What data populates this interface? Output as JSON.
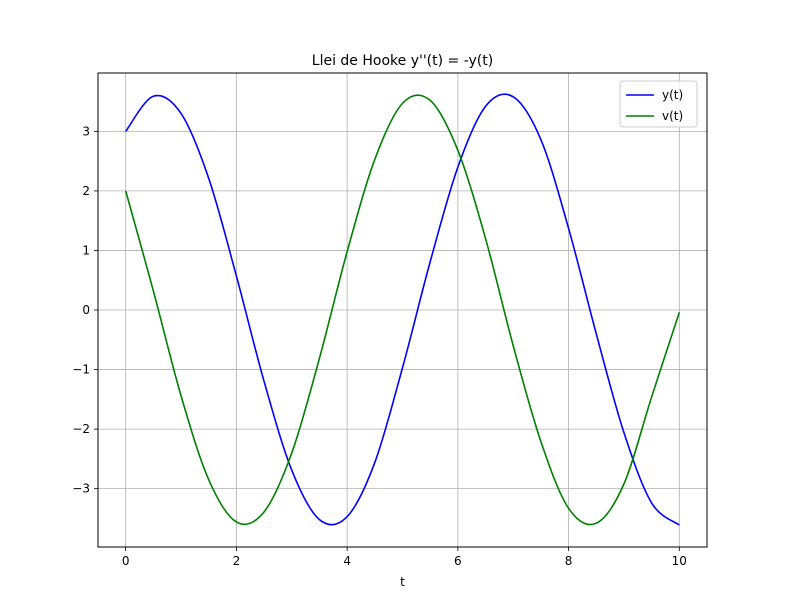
{
  "chart_data": {
    "type": "line",
    "title": "Llei de Hooke y''(t) = -y(t)",
    "xlabel": "t",
    "ylabel": "",
    "xlim": [
      -0.5,
      10.5
    ],
    "ylim": [
      -3.98,
      3.98
    ],
    "xticks": [
      0,
      2,
      4,
      6,
      8,
      10
    ],
    "xtick_labels": [
      "0",
      "2",
      "4",
      "6",
      "8",
      "10"
    ],
    "yticks": [
      -3,
      -2,
      -1,
      0,
      1,
      2,
      3
    ],
    "ytick_labels": [
      "−3",
      "−2",
      "−1",
      "0",
      "1",
      "2",
      "3"
    ],
    "grid": true,
    "legend_position": "top-right",
    "series": [
      {
        "name": "y(t)",
        "color": "#0000ff",
        "x": [
          0,
          0.5,
          1,
          1.5,
          2,
          2.5,
          3,
          3.5,
          4,
          4.5,
          5,
          5.5,
          6,
          6.5,
          7,
          7.5,
          8,
          8.5,
          9,
          9.5,
          10
        ],
        "values": [
          3.0,
          3.59,
          3.3,
          2.21,
          0.57,
          -1.2,
          -2.69,
          -3.52,
          -3.47,
          -2.56,
          -0.97,
          0.81,
          2.4,
          3.42,
          3.58,
          2.86,
          1.37,
          -0.4,
          -2.06,
          -3.24,
          -3.61
        ]
      },
      {
        "name": "v(t)",
        "color": "#008000",
        "x": [
          0,
          0.5,
          1,
          1.5,
          2,
          2.5,
          3,
          3.5,
          4,
          4.5,
          5,
          5.5,
          6,
          6.5,
          7,
          7.5,
          8,
          8.5,
          9,
          9.5,
          10
        ],
        "values": [
          2.0,
          0.32,
          -1.44,
          -2.85,
          -3.56,
          -3.39,
          -2.4,
          -0.81,
          0.98,
          2.53,
          3.47,
          3.52,
          2.68,
          1.2,
          -0.6,
          -2.21,
          -3.33,
          -3.58,
          -2.92,
          -1.46,
          -0.04
        ]
      }
    ]
  },
  "colors": {
    "grid": "#b0b0b0",
    "axes": "#000000"
  }
}
